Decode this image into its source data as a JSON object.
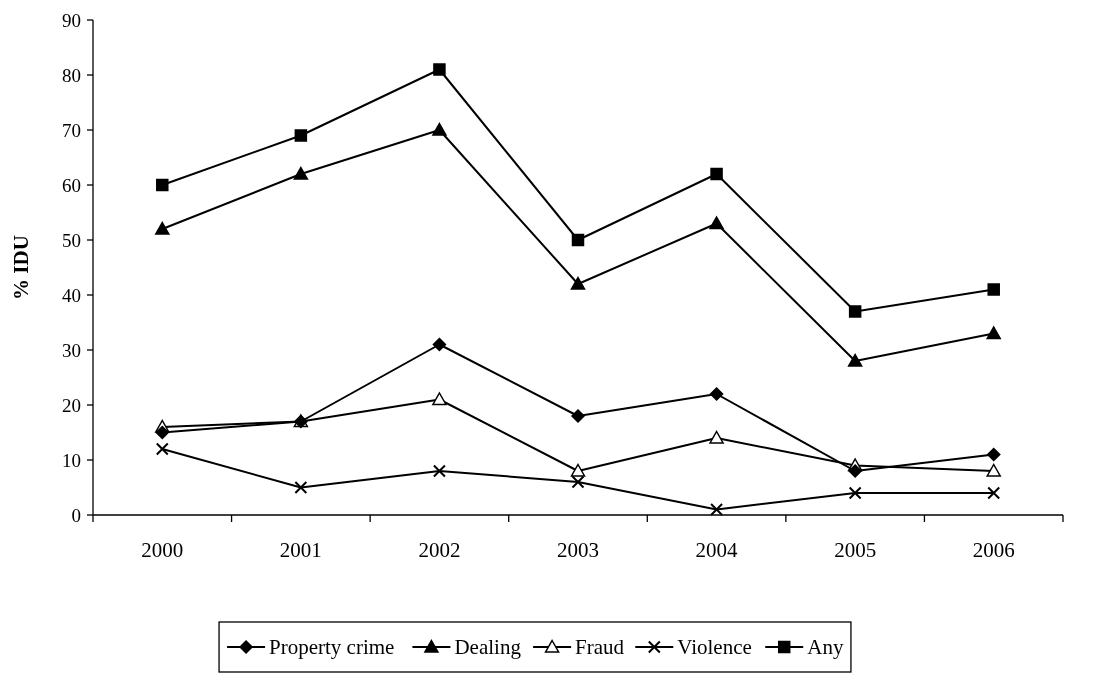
{
  "chart_data": {
    "type": "line",
    "ylabel": "% IDU",
    "categories": [
      "2000",
      "2001",
      "2002",
      "2003",
      "2004",
      "2005",
      "2006"
    ],
    "ylim": [
      0,
      90
    ],
    "yticks": [
      0,
      10,
      20,
      30,
      40,
      50,
      60,
      70,
      80,
      90
    ],
    "grid": false,
    "legend": "bottom",
    "line_style": "solid",
    "series": [
      {
        "name": "Property crime",
        "color": "#000000",
        "marker": "diamond",
        "values": [
          15,
          17,
          31,
          18,
          22,
          8,
          11
        ]
      },
      {
        "name": "Dealing",
        "color": "#000000",
        "marker": "triangle",
        "values": [
          52,
          62,
          70,
          42,
          53,
          28,
          33
        ]
      },
      {
        "name": "Fraud",
        "color": "#000000",
        "marker": "triangle",
        "values": [
          16,
          17,
          21,
          8,
          14,
          9,
          8
        ]
      },
      {
        "name": "Violence",
        "color": "#000000",
        "marker": "cross",
        "values": [
          12,
          5,
          8,
          6,
          1,
          4,
          4
        ]
      },
      {
        "name": "Any",
        "color": "#000000",
        "marker": "square",
        "values": [
          60,
          69,
          81,
          50,
          62,
          37,
          41
        ]
      }
    ]
  }
}
